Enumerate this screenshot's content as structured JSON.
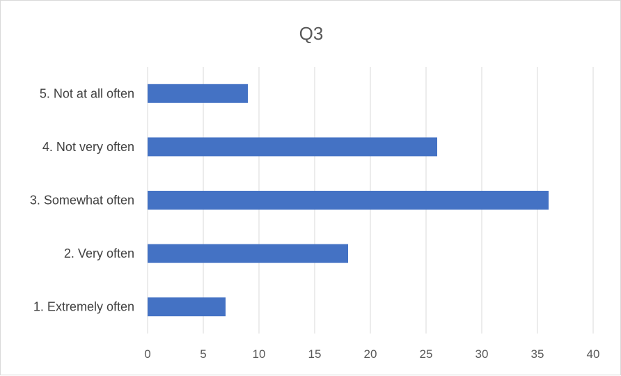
{
  "chart_data": {
    "type": "bar",
    "orientation": "horizontal",
    "title": "Q3",
    "categories": [
      "1. Extremely often",
      "2. Very often",
      "3. Somewhat often",
      "4. Not very often",
      "5. Not at all often"
    ],
    "values": [
      7,
      18,
      36,
      26,
      9
    ],
    "xlabel": "",
    "ylabel": "",
    "xlim": [
      0,
      40
    ],
    "x_ticks": [
      0,
      5,
      10,
      15,
      20,
      25,
      30,
      35,
      40
    ],
    "grid": true,
    "legend": "none",
    "bar_color": "#4472c4"
  }
}
